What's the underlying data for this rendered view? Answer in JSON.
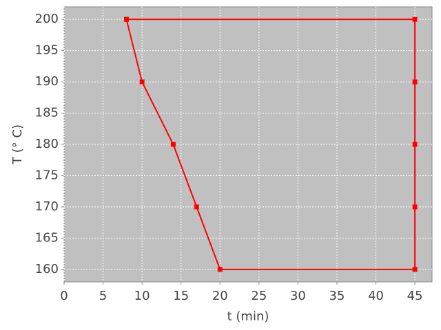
{
  "chart_data": {
    "type": "line",
    "x_label": "t (min)",
    "y_label": "T (° C)",
    "x": [
      8,
      10,
      14,
      17,
      20,
      45,
      45,
      45,
      45,
      45,
      8
    ],
    "values": [
      200,
      190,
      180,
      170,
      160,
      160,
      170,
      180,
      190,
      200,
      200
    ],
    "color": "#ff0000",
    "xlim": [
      0,
      47.2
    ],
    "ylim": [
      158,
      202
    ],
    "xticks": [
      0,
      5,
      10,
      15,
      20,
      25,
      30,
      35,
      40,
      45
    ],
    "yticks": [
      160,
      165,
      170,
      175,
      180,
      185,
      190,
      195,
      200
    ],
    "grid": true
  }
}
